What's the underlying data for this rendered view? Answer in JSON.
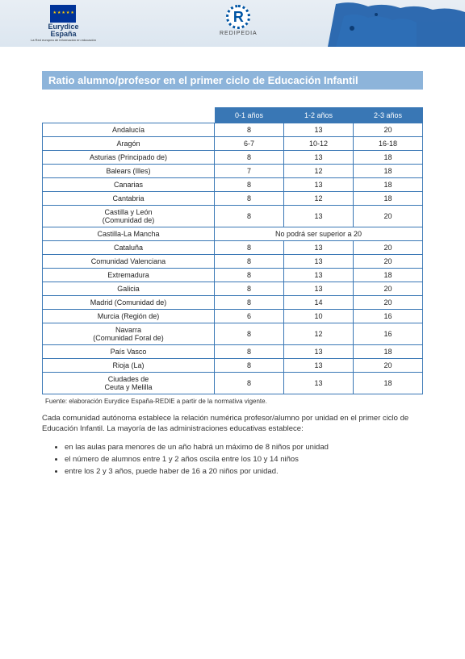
{
  "header": {
    "eurydice": "Eurydice",
    "espana": "España",
    "subtext": "La Red europea de información en educación",
    "redipedia": "REDIPEDIA",
    "redi_r": "R"
  },
  "title": "Ratio alumno/profesor en el primer ciclo de Educación Infantil",
  "table": {
    "headers": [
      "0-1 años",
      "1-2 años",
      "2-3 años"
    ],
    "rows": [
      {
        "region": "Andalucía",
        "v": [
          "8",
          "13",
          "20"
        ]
      },
      {
        "region": "Aragón",
        "v": [
          "6-7",
          "10-12",
          "16-18"
        ]
      },
      {
        "region": "Asturias (Principado de)",
        "v": [
          "8",
          "13",
          "18"
        ]
      },
      {
        "region": "Balears (Illes)",
        "v": [
          "7",
          "12",
          "18"
        ]
      },
      {
        "region": "Canarias",
        "v": [
          "8",
          "13",
          "18"
        ]
      },
      {
        "region": "Cantabria",
        "v": [
          "8",
          "12",
          "18"
        ]
      },
      {
        "region": "Castilla y León\n(Comunidad de)",
        "v": [
          "8",
          "13",
          "20"
        ]
      },
      {
        "region": "Castilla-La Mancha",
        "span": "No podrá ser superior a 20"
      },
      {
        "region": "Cataluña",
        "v": [
          "8",
          "13",
          "20"
        ]
      },
      {
        "region": "Comunidad Valenciana",
        "v": [
          "8",
          "13",
          "20"
        ]
      },
      {
        "region": "Extremadura",
        "v": [
          "8",
          "13",
          "18"
        ]
      },
      {
        "region": "Galicia",
        "v": [
          "8",
          "13",
          "20"
        ]
      },
      {
        "region": "Madrid (Comunidad de)",
        "v": [
          "8",
          "14",
          "20"
        ]
      },
      {
        "region": "Murcia (Región de)",
        "v": [
          "6",
          "10",
          "16"
        ]
      },
      {
        "region": "Navarra\n(Comunidad Foral de)",
        "v": [
          "8",
          "12",
          "16"
        ]
      },
      {
        "region": "País Vasco",
        "v": [
          "8",
          "13",
          "18"
        ]
      },
      {
        "region": "Rioja (La)",
        "v": [
          "8",
          "13",
          "20"
        ]
      },
      {
        "region": "Ciudades de\nCeuta y Melilla",
        "v": [
          "8",
          "13",
          "18"
        ]
      }
    ]
  },
  "source": "Fuente: elaboración Eurydice España-REDIE a partir de la normativa vigente.",
  "paragraph": "Cada comunidad autónoma establece la relación numérica profesor/alumno por unidad en el primer ciclo de Educación Infantil. La mayoría de las administraciones educativas establece:",
  "bullets": [
    "en las aulas para menores de un año habrá un máximo de 8 niños por unidad",
    "el número de alumnos entre 1 y 2 años oscila entre los 10 y 14 niños",
    "entre los 2 y 3 años, puede haber de 16 a 20 niños por unidad."
  ],
  "colors": {
    "band": "#dce6f0",
    "title_bg": "#8db4da",
    "th_bg": "#3977b5",
    "border": "#3977b5",
    "map": "#1a5ca8"
  }
}
